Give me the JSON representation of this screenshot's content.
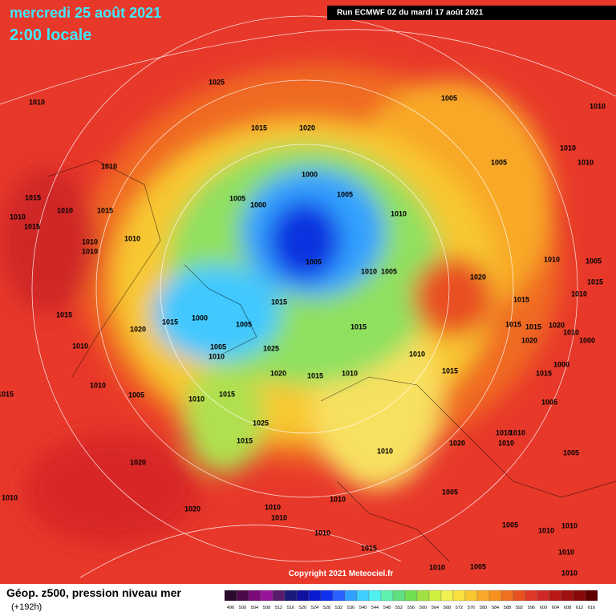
{
  "header": {
    "date": "mercredi 25 août 2021",
    "time": "2:00 locale",
    "run": "Run ECMWF 0Z du mardi 17 août 2021"
  },
  "footer": {
    "title": "Géop. z500, pression niveau mer",
    "lead": "(+192h)",
    "copyright": "Copyright 2021 Meteociel.fr"
  },
  "colorbar": {
    "levels": [
      496,
      500,
      504,
      508,
      512,
      516,
      520,
      524,
      528,
      532,
      536,
      540,
      544,
      548,
      552,
      556,
      560,
      564,
      568,
      572,
      576,
      580,
      584,
      588,
      592,
      596,
      600,
      604,
      608,
      612,
      616
    ],
    "colors": [
      "#2a0a2a",
      "#4a0a4a",
      "#7a0a7a",
      "#9a149a",
      "#5a1a6a",
      "#1a1a7a",
      "#1010a0",
      "#0a1ad0",
      "#1030f0",
      "#2a60ff",
      "#30a0ff",
      "#40d0ff",
      "#50f0f0",
      "#60f0b0",
      "#60e080",
      "#70e050",
      "#a0e040",
      "#d0f040",
      "#f0f050",
      "#f8e040",
      "#f8c830",
      "#f8a828",
      "#f89020",
      "#f07020",
      "#e85020",
      "#e03828",
      "#d02828",
      "#b81818",
      "#a01010",
      "#880808",
      "#600000"
    ]
  },
  "isobar_labels": [
    1025,
    1010,
    1005,
    1010,
    1015,
    1020,
    1010,
    1005,
    1010,
    1010,
    1000,
    1005,
    1005,
    1000,
    1015,
    1015,
    1010,
    1010,
    1015,
    1010,
    1010,
    1010,
    1010,
    1005,
    1010,
    1005,
    1020,
    1010,
    1005,
    1015,
    1010,
    1015,
    1015,
    1015,
    1000,
    1005,
    1015,
    1020,
    1015,
    1015,
    1020,
    1010,
    1015,
    1005,
    1010,
    1010,
    1025,
    1000,
    1020,
    1010,
    1000,
    1020,
    1015,
    1010,
    1015,
    1015,
    1010,
    1005,
    1010,
    1015,
    1005,
    1025,
    1015,
    1020,
    1010,
    1010,
    1010,
    1010,
    1005,
    1020,
    1005,
    1010,
    1010,
    1010,
    1010,
    1020,
    1005,
    1010,
    1010,
    1010,
    1015,
    1010,
    1010,
    1005,
    1010,
    1015
  ]
}
